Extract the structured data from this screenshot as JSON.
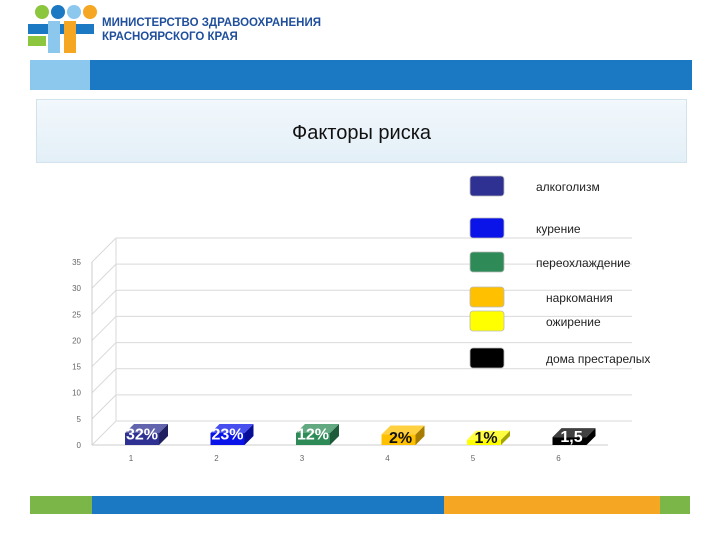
{
  "header": {
    "org_line1": "МИНИСТЕРСТВО ЗДРАВООХРАНЕНИЯ",
    "org_line2": "КРАСНОЯРСКОГО КРАЯ"
  },
  "colors": {
    "brand_blue": "#1b78c2",
    "brand_light_blue": "#8cc7ee",
    "brand_green": "#7ab648",
    "brand_orange": "#f5a623"
  },
  "chart_data": {
    "type": "bar",
    "title": "Факторы риска",
    "categories": [
      "1",
      "2",
      "3",
      "4",
      "5",
      "6"
    ],
    "values": [
      32,
      23,
      12,
      2,
      1,
      1.5
    ],
    "data_labels": [
      "32%",
      "23%",
      "12%",
      "2%",
      "1%",
      "1,5"
    ],
    "ylim": [
      0,
      35
    ],
    "yticks": [
      0,
      5,
      10,
      15,
      20,
      25,
      30,
      35
    ],
    "grid": true,
    "legend_position": "top-right",
    "series": [
      {
        "name": "алкоголизм",
        "color": "#2e3192"
      },
      {
        "name": "курение",
        "color": "#0a14e8"
      },
      {
        "name": "переохлаждение",
        "color": "#2e8b57"
      },
      {
        "name": "наркомания",
        "color": "#ffc000"
      },
      {
        "name": "ожирение",
        "color": "#ffff00"
      },
      {
        "name": "дома престарелых",
        "color": "#000000"
      }
    ]
  }
}
